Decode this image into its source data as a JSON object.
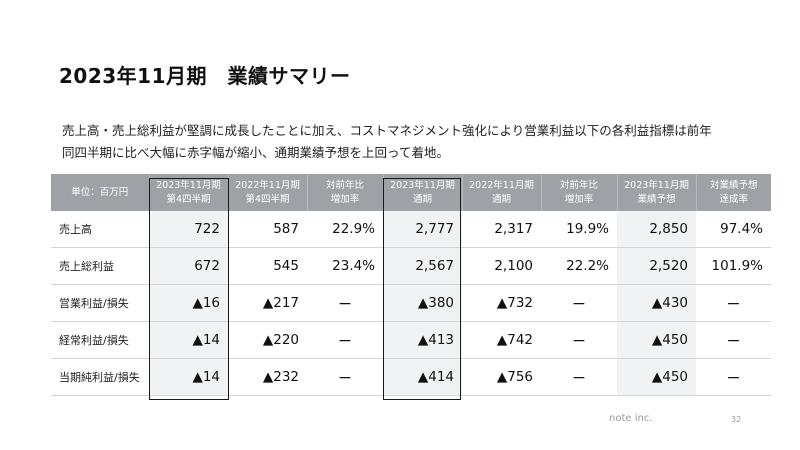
{
  "title": "2023年11月期　業績サマリー",
  "description_line1": "売上高・売上総利益が堅調に成長したことに加え、コストマネジメント強化により営業利益以下の各利益指標は前年",
  "description_line2": "同四半期に比べ大幅に赤字幅が縮小、通期業績予想を上回って着地。",
  "table": {
    "corner_label": "単位：百万円",
    "headers": [
      {
        "line1": "2023年11月期",
        "line2": "第4四半期"
      },
      {
        "line1": "2022年11月期",
        "line2": "第4四半期"
      },
      {
        "line1": "対前年比",
        "line2": "増加率"
      },
      {
        "line1": "2023年11月期",
        "line2": "通期"
      },
      {
        "line1": "2022年11月期",
        "line2": "通期"
      },
      {
        "line1": "対前年比",
        "line2": "増加率"
      },
      {
        "line1": "2023年11月期",
        "line2": "業績予想"
      },
      {
        "line1": "対業績予想",
        "line2": "達成率"
      }
    ],
    "rows": [
      {
        "label": "売上高",
        "values": [
          "722",
          "587",
          "22.9%",
          "2,777",
          "2,317",
          "19.9%",
          "2,850",
          "97.4%"
        ]
      },
      {
        "label": "売上総利益",
        "values": [
          "672",
          "545",
          "23.4%",
          "2,567",
          "2,100",
          "22.2%",
          "2,520",
          "101.9%"
        ]
      },
      {
        "label": "営業利益/損失",
        "values": [
          "▲16",
          "▲217",
          "ー",
          "▲380",
          "▲732",
          "ー",
          "▲430",
          "ー"
        ]
      },
      {
        "label": "経常利益/損失",
        "values": [
          "▲14",
          "▲220",
          "ー",
          "▲413",
          "▲742",
          "ー",
          "▲450",
          "ー"
        ]
      },
      {
        "label": "当期純利益/損失",
        "values": [
          "▲14",
          "▲232",
          "ー",
          "▲414",
          "▲756",
          "ー",
          "▲450",
          "ー"
        ]
      }
    ]
  },
  "footer": {
    "brand": "note inc.",
    "page_number": "32"
  }
}
